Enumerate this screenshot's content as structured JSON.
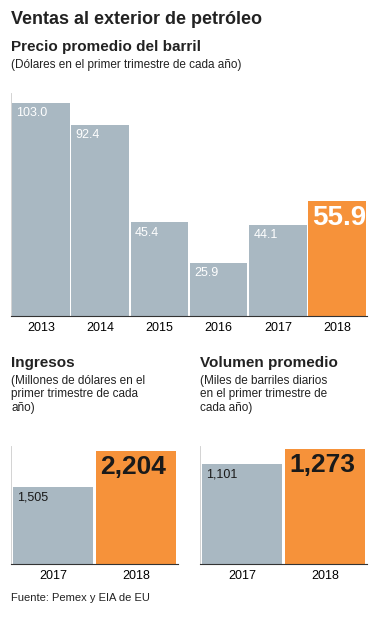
{
  "title": "Ventas al exterior de petróleo",
  "source": "Fuente: Pemex y EIA de EU",
  "chart_data": [
    {
      "type": "bar",
      "title": "Precio promedio del barril",
      "subtitle": "(Dólares en el primer trimestre de cada año)",
      "categories": [
        "2013",
        "2014",
        "2015",
        "2016",
        "2017",
        "2018"
      ],
      "values": [
        103.0,
        92.4,
        45.4,
        25.9,
        44.1,
        55.9
      ],
      "colors": [
        "#a9b8c2",
        "#a9b8c2",
        "#a9b8c2",
        "#a9b8c2",
        "#a9b8c2",
        "#f6923a"
      ],
      "ylim": [
        0,
        108
      ],
      "yticks": [],
      "data_labels": true,
      "tick_labels": "x"
    },
    {
      "type": "bar",
      "title": "Ingresos",
      "subtitle": "(Millones de dólares en el primer trimestre de cada año)",
      "categories": [
        "2017",
        "2018"
      ],
      "values": [
        1505,
        2204
      ],
      "value_labels": [
        "1,505",
        "2,204"
      ],
      "colors": [
        "#a9b8c2",
        "#f6923a"
      ],
      "ylim": [
        0,
        2300
      ],
      "yticks": [],
      "data_labels": true,
      "tick_labels": "x"
    },
    {
      "type": "bar",
      "title": "Volumen promedio",
      "subtitle": "(Miles de barriles diarios en el primer trimestre de cada año)",
      "categories": [
        "2017",
        "2018"
      ],
      "values": [
        1101,
        1273
      ],
      "value_labels": [
        "1,101",
        "1,273"
      ],
      "colors": [
        "#a9b8c2",
        "#f6923a"
      ],
      "ylim": [
        0,
        1300
      ],
      "yticks": [],
      "data_labels": true,
      "tick_labels": "x"
    }
  ]
}
